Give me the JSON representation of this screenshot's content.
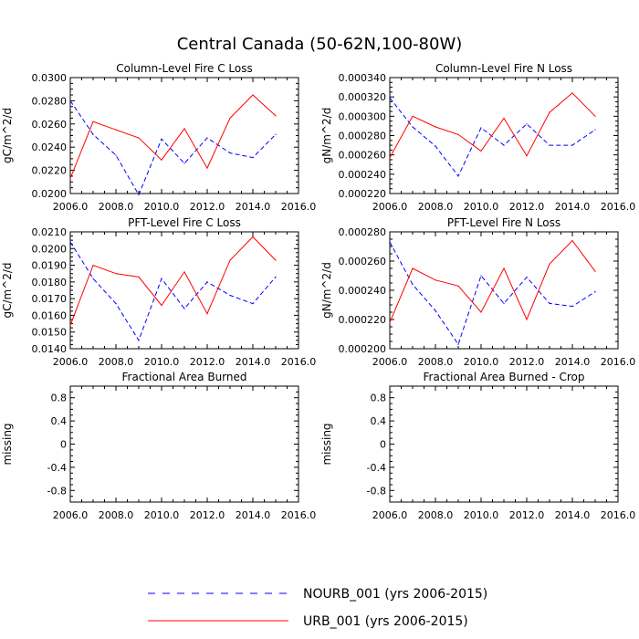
{
  "title": "Central Canada (50-62N,100-80W)",
  "legend": {
    "entries": [
      {
        "label": "NOURB_001 (yrs 2006-2015)",
        "color": "#0000ff",
        "dash": true
      },
      {
        "label": "URB_001 (yrs 2006-2015)",
        "color": "#ff0000",
        "dash": false
      }
    ]
  },
  "chart_data": [
    {
      "type": "line",
      "title": "Column-Level Fire C Loss",
      "ylabel": "gC/m^2/d",
      "xlim": [
        2006,
        2016
      ],
      "ylim": [
        0.02,
        0.03
      ],
      "xticks": [
        "2006.0",
        "2008.0",
        "2010.0",
        "2012.0",
        "2014.0",
        "2016.0"
      ],
      "yticks": [
        "0.0200",
        "0.0220",
        "0.0240",
        "0.0260",
        "0.0280",
        "0.0300"
      ],
      "x": [
        2006,
        2007,
        2008,
        2009,
        2010,
        2011,
        2012,
        2013,
        2014,
        2015
      ],
      "series": [
        {
          "name": "NOURB_001 (yrs 2006-2015)",
          "values": [
            0.028,
            0.0251,
            0.0233,
            0.0199,
            0.0247,
            0.0226,
            0.0248,
            0.0235,
            0.0231,
            0.0251
          ]
        },
        {
          "name": "URB_001 (yrs 2006-2015)",
          "values": [
            0.0213,
            0.0262,
            0.0255,
            0.0248,
            0.0229,
            0.0256,
            0.0222,
            0.0265,
            0.0285,
            0.0267
          ]
        }
      ]
    },
    {
      "type": "line",
      "title": "Column-Level Fire N Loss",
      "ylabel": "gN/m^2/d",
      "xlim": [
        2006,
        2016
      ],
      "ylim": [
        0.00022,
        0.00034
      ],
      "xticks": [
        "2006.0",
        "2008.0",
        "2010.0",
        "2012.0",
        "2014.0",
        "2016.0"
      ],
      "yticks": [
        "0.000220",
        "0.000240",
        "0.000260",
        "0.000280",
        "0.000300",
        "0.000320",
        "0.000340"
      ],
      "x": [
        2006,
        2007,
        2008,
        2009,
        2010,
        2011,
        2012,
        2013,
        2014,
        2015
      ],
      "series": [
        {
          "name": "NOURB_001 (yrs 2006-2015)",
          "values": [
            0.000319,
            0.000289,
            0.000269,
            0.000238,
            0.000288,
            0.00027,
            0.000292,
            0.00027,
            0.00027,
            0.000286
          ]
        },
        {
          "name": "URB_001 (yrs 2006-2015)",
          "values": [
            0.000257,
            0.0003,
            0.000289,
            0.000281,
            0.000264,
            0.000298,
            0.000259,
            0.000304,
            0.000324,
            0.0003
          ]
        }
      ]
    },
    {
      "type": "line",
      "title": "PFT-Level Fire C Loss",
      "ylabel": "gC/m^2/d",
      "xlim": [
        2006,
        2016
      ],
      "ylim": [
        0.014,
        0.021
      ],
      "xticks": [
        "2006.0",
        "2008.0",
        "2010.0",
        "2012.0",
        "2014.0",
        "2016.0"
      ],
      "yticks": [
        "0.0140",
        "0.0150",
        "0.0160",
        "0.0170",
        "0.0180",
        "0.0190",
        "0.0200",
        "0.0210"
      ],
      "x": [
        2006,
        2007,
        2008,
        2009,
        2010,
        2011,
        2012,
        2013,
        2014,
        2015
      ],
      "series": [
        {
          "name": "NOURB_001 (yrs 2006-2015)",
          "values": [
            0.0204,
            0.0182,
            0.0167,
            0.0145,
            0.0182,
            0.0164,
            0.018,
            0.0172,
            0.0167,
            0.0183
          ]
        },
        {
          "name": "URB_001 (yrs 2006-2015)",
          "values": [
            0.0154,
            0.019,
            0.0185,
            0.0183,
            0.0166,
            0.0186,
            0.0161,
            0.0193,
            0.0207,
            0.0193
          ]
        }
      ]
    },
    {
      "type": "line",
      "title": "PFT-Level Fire N Loss",
      "ylabel": "gN/m^2/d",
      "xlim": [
        2006,
        2016
      ],
      "ylim": [
        0.0002,
        0.00028
      ],
      "xticks": [
        "2006.0",
        "2008.0",
        "2010.0",
        "2012.0",
        "2014.0",
        "2016.0"
      ],
      "yticks": [
        "0.000200",
        "0.000220",
        "0.000240",
        "0.000260",
        "0.000280"
      ],
      "x": [
        2006,
        2007,
        2008,
        2009,
        2010,
        2011,
        2012,
        2013,
        2014,
        2015
      ],
      "series": [
        {
          "name": "NOURB_001 (yrs 2006-2015)",
          "values": [
            0.000273,
            0.000244,
            0.000226,
            0.000203,
            0.00025,
            0.000231,
            0.000249,
            0.000231,
            0.000229,
            0.000239
          ]
        },
        {
          "name": "URB_001 (yrs 2006-2015)",
          "values": [
            0.000218,
            0.000255,
            0.000247,
            0.000243,
            0.000225,
            0.000255,
            0.00022,
            0.000258,
            0.000274,
            0.000253
          ]
        }
      ]
    },
    {
      "type": "line",
      "title": "Fractional Area Burned",
      "ylabel": "missing",
      "xlim": [
        2006,
        2016
      ],
      "ylim": [
        -1.0,
        1.0
      ],
      "xticks": [
        "2006.0",
        "2008.0",
        "2010.0",
        "2012.0",
        "2014.0",
        "2016.0"
      ],
      "yticks": [
        "-0.8",
        "-0.4",
        "0",
        "0.4",
        "0.8"
      ],
      "x": [],
      "series": []
    },
    {
      "type": "line",
      "title": "Fractional Area Burned - Crop",
      "ylabel": "missing",
      "xlim": [
        2006,
        2016
      ],
      "ylim": [
        -1.0,
        1.0
      ],
      "xticks": [
        "2006.0",
        "2008.0",
        "2010.0",
        "2012.0",
        "2014.0",
        "2016.0"
      ],
      "yticks": [
        "-0.8",
        "-0.4",
        "0",
        "0.4",
        "0.8"
      ],
      "x": [],
      "series": []
    }
  ]
}
